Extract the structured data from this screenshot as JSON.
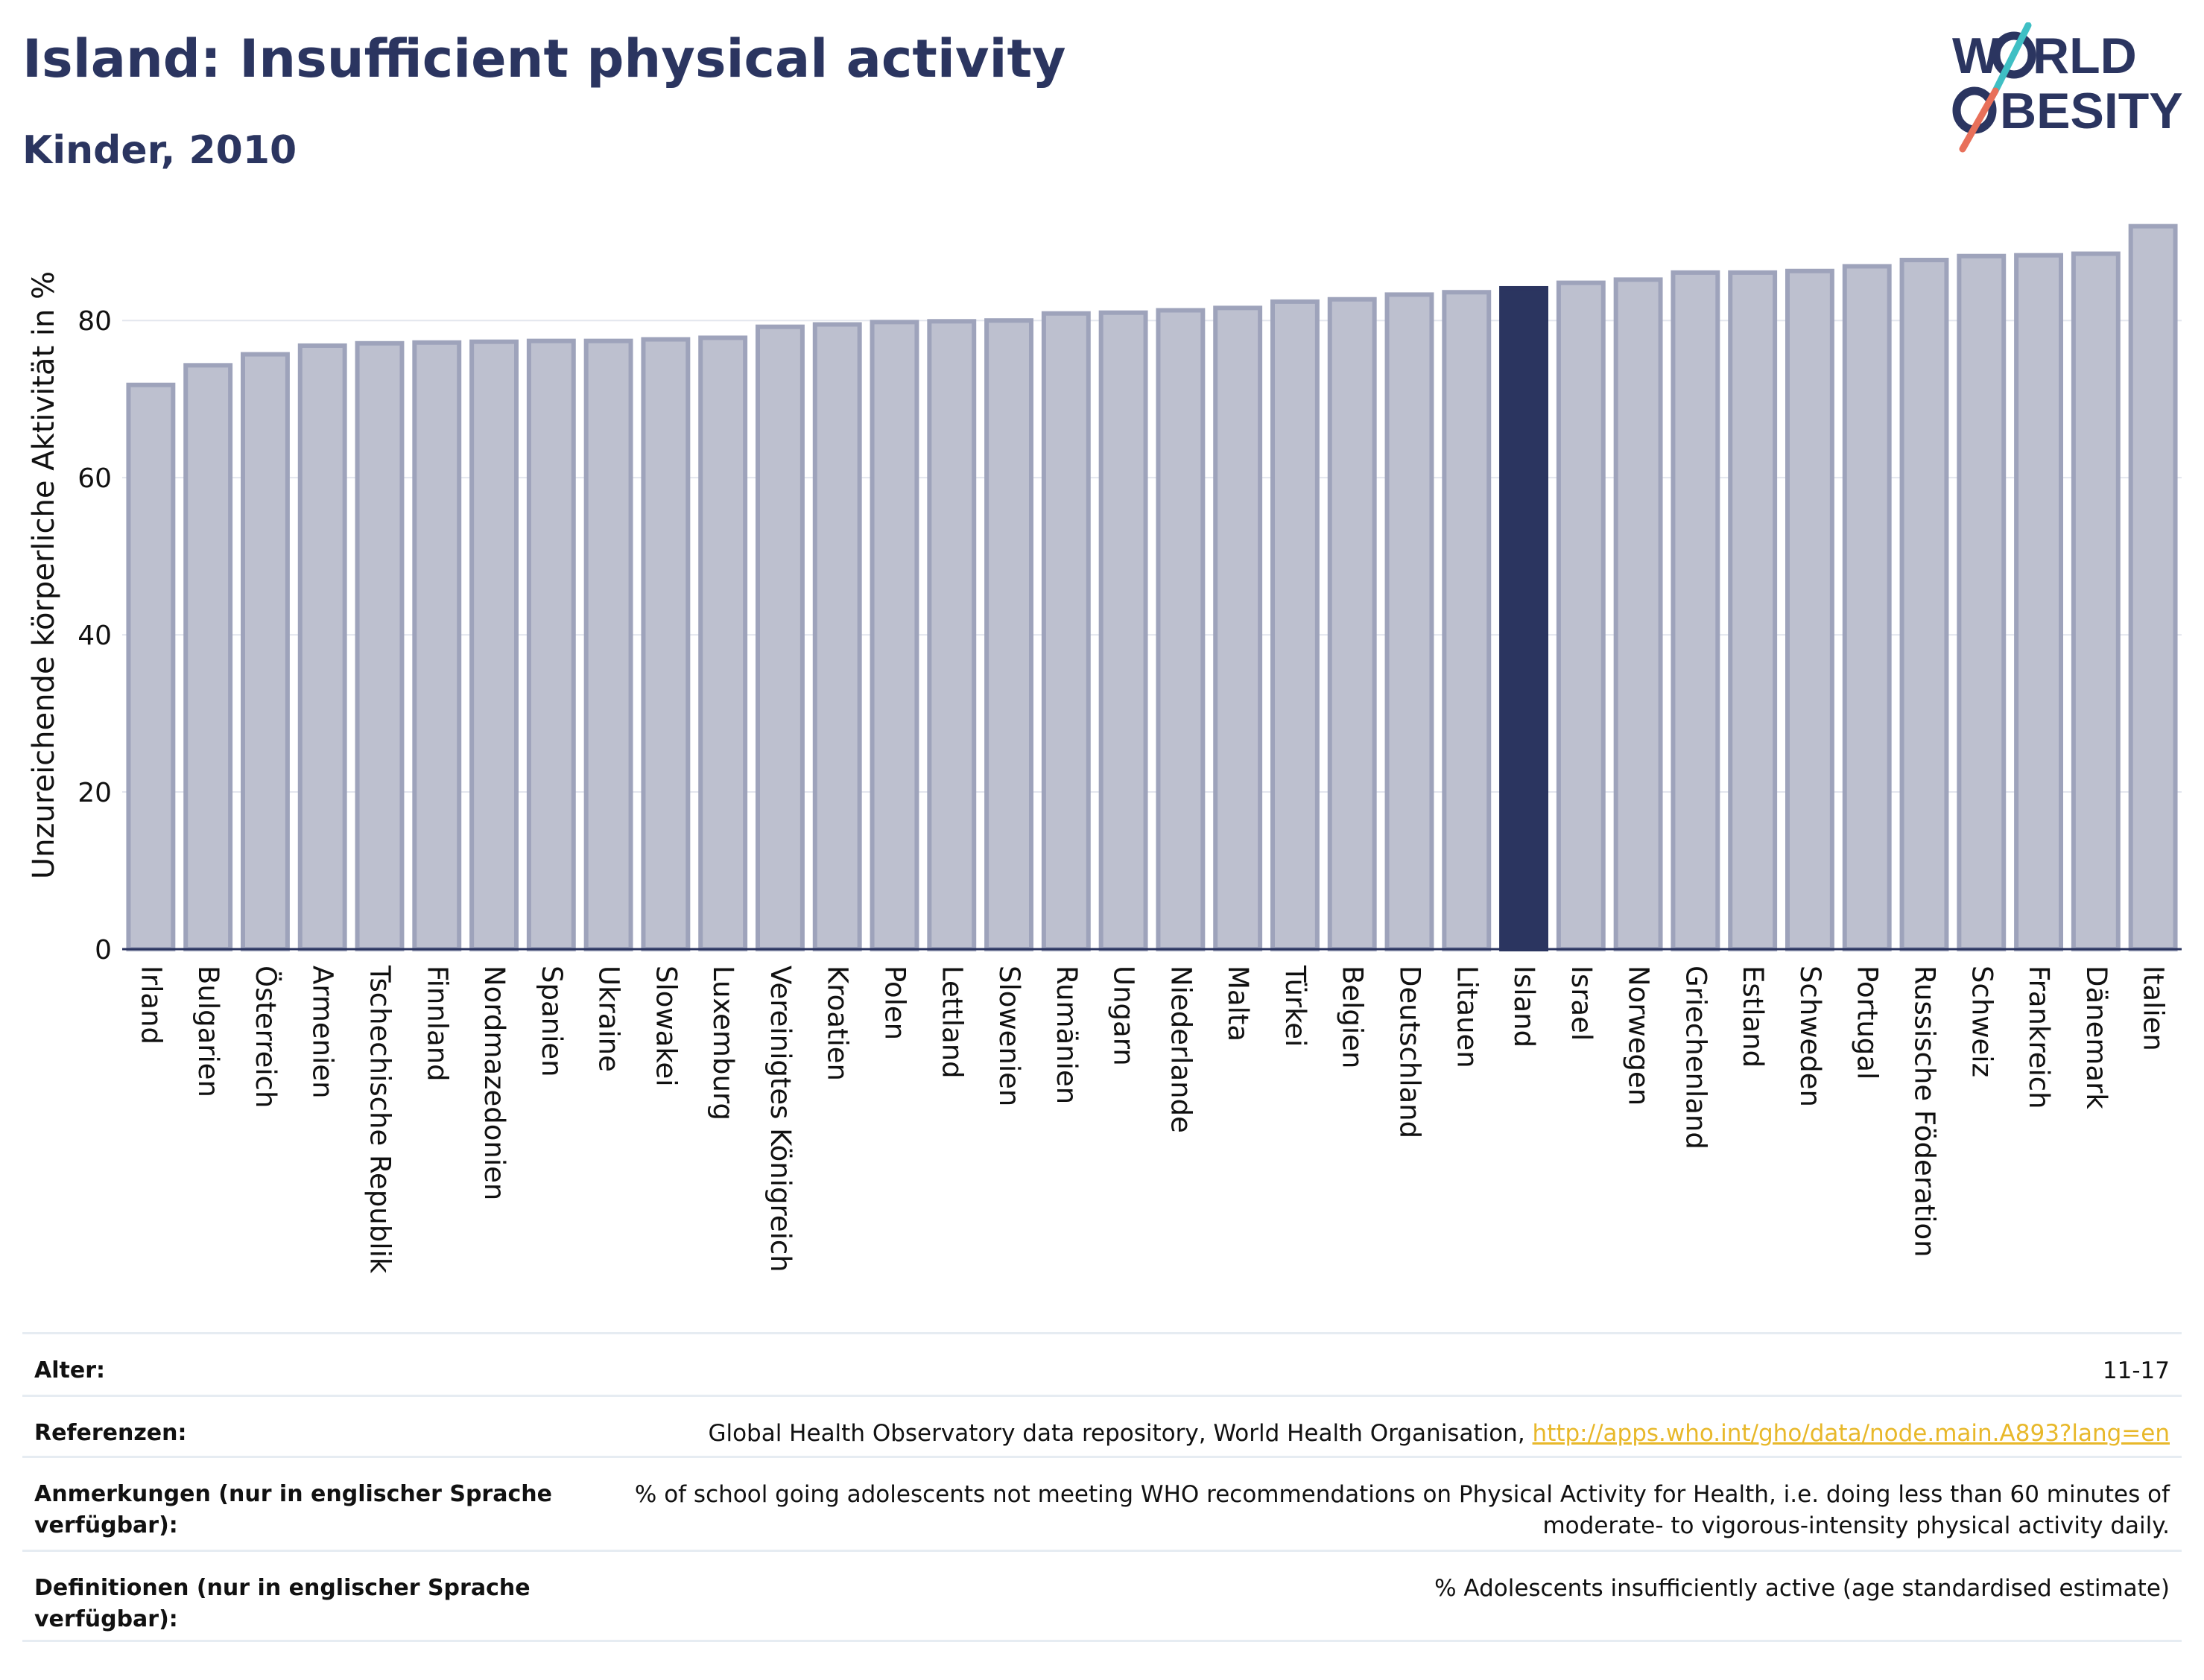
{
  "header": {
    "title": "Island: Insufficient physical activity",
    "subtitle": "Kinder, 2010"
  },
  "logo": {
    "line1": "WORLD",
    "line2": "OBESITY"
  },
  "colors": {
    "bar": "#bdc0cf",
    "bar_border": "#9ea3bb",
    "highlight": "#2b3560",
    "title": "#2b3560",
    "link": "#e8b82a"
  },
  "chart_data": {
    "type": "bar",
    "ylabel": "Unzureichende körperliche Aktivität in %",
    "xlabel": "",
    "ylim": [
      0,
      95
    ],
    "yticks": [
      0,
      20,
      40,
      60,
      80
    ],
    "grid": true,
    "highlight": "Island",
    "categories": [
      "Irland",
      "Bulgarien",
      "Österreich",
      "Armenien",
      "Tschechische Republik",
      "Finnland",
      "Nordmazedonien",
      "Spanien",
      "Ukraine",
      "Slowakei",
      "Luxemburg",
      "Vereinigtes Königreich",
      "Kroatien",
      "Polen",
      "Lettland",
      "Slowenien",
      "Rumänien",
      "Ungarn",
      "Niederlande",
      "Malta",
      "Türkei",
      "Belgien",
      "Deutschland",
      "Litauen",
      "Island",
      "Israel",
      "Norwegen",
      "Griechenland",
      "Estland",
      "Schweden",
      "Portugal",
      "Russische Föderation",
      "Schweiz",
      "Frankreich",
      "Dänemark",
      "Italien"
    ],
    "values": [
      71.8,
      74.3,
      75.7,
      76.8,
      77.1,
      77.2,
      77.3,
      77.4,
      77.4,
      77.6,
      77.8,
      79.2,
      79.5,
      79.8,
      79.9,
      80.0,
      80.9,
      81.0,
      81.3,
      81.6,
      82.4,
      82.7,
      83.3,
      83.6,
      84.1,
      84.8,
      85.2,
      86.1,
      86.1,
      86.3,
      86.9,
      87.7,
      88.2,
      88.3,
      88.5,
      92.0
    ]
  },
  "meta": {
    "age_label": "Alter:",
    "age_value": "11-17",
    "references_label": "Referenzen:",
    "references_text": "Global Health Observatory data repository, World Health Organisation, ",
    "references_link": "http://apps.who.int/gho/data/node.main.A893?lang=en",
    "notes_label": "Anmerkungen (nur in englischer Sprache verfügbar):",
    "notes_value": "% of school going adolescents not meeting WHO recommendations on Physical Activity for Health, i.e. doing less than 60 minutes of moderate- to vigorous-intensity physical activity daily.",
    "definitions_label": "Definitionen (nur in englischer Sprache verfügbar):",
    "definitions_value": "% Adolescents insufficiently active (age standardised estimate)"
  }
}
